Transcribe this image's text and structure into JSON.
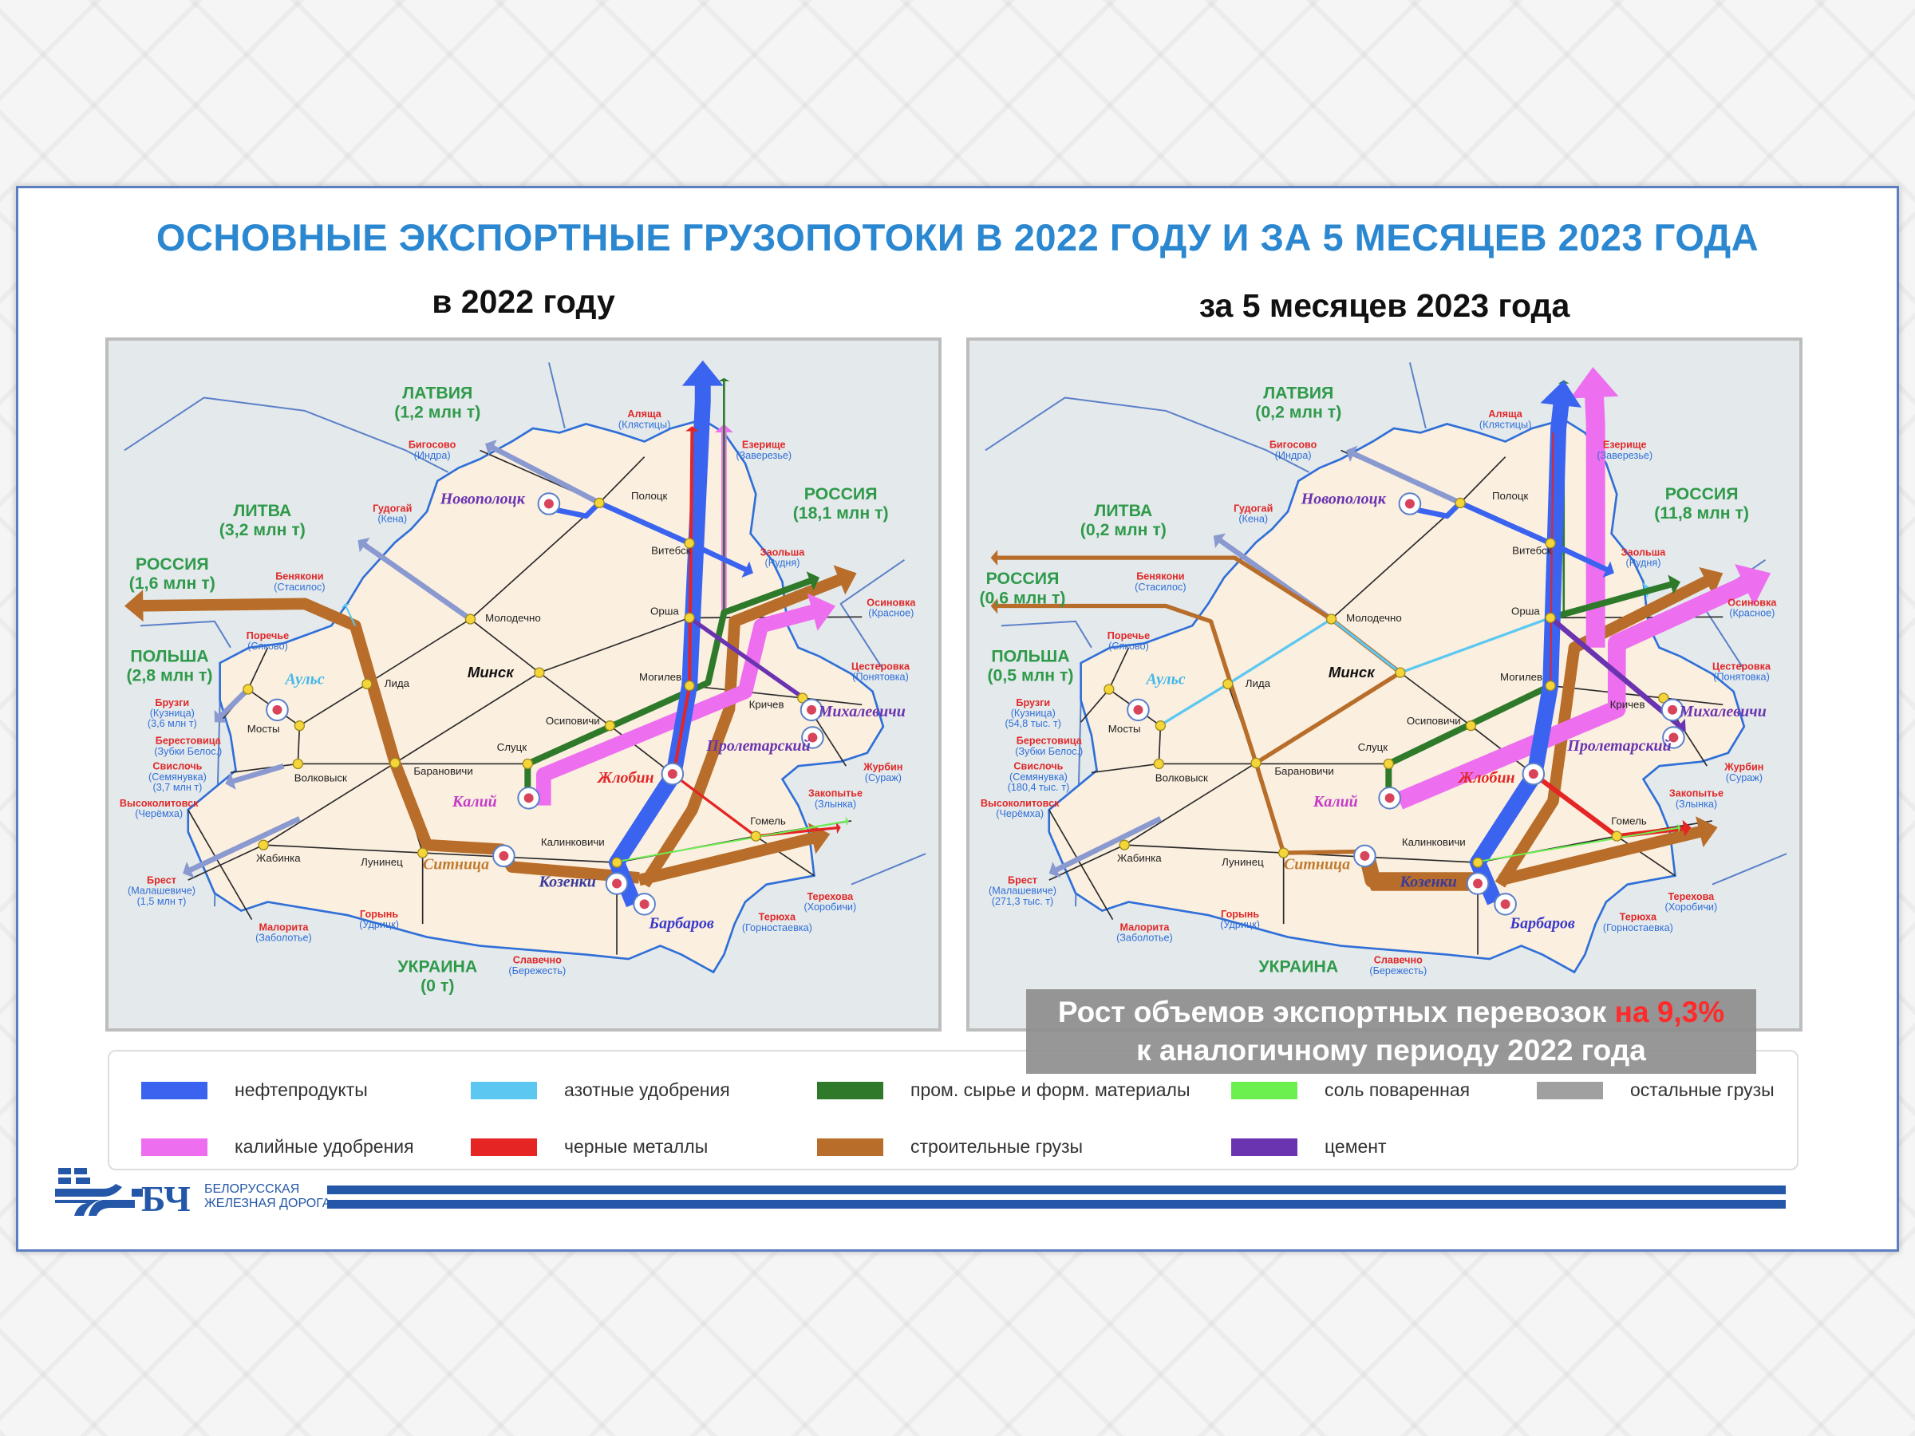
{
  "title": "ОСНОВНЫЕ  ЭКСПОРТНЫЕ  ГРУЗОПОТОКИ В 2022 ГОДУ И ЗА 5 МЕСЯЦЕВ 2023 ГОДА",
  "left": {
    "subtitle": "в 2022 году",
    "countries": {
      "latvia": {
        "name": "ЛАТВИЯ",
        "volume": "(1,2 млн т)"
      },
      "lithuania": {
        "name": "ЛИТВА",
        "volume": "(3,2 млн т)"
      },
      "russia_east": {
        "name": "РОССИЯ",
        "volume": "(18,1 млн т)"
      },
      "russia_west": {
        "name": "РОССИЯ",
        "volume": "(1,6 млн т)"
      },
      "poland": {
        "name": "ПОЛЬША",
        "volume": "(2,8 млн т)"
      },
      "ukraine": {
        "name": "УКРАИНА",
        "volume": "(0 т)"
      }
    },
    "crossing_volumes": {
      "bruzgi": "(3,6 млн т)",
      "svisloch": "(3,7 млн т)",
      "brest": "(1,5 млн т)"
    }
  },
  "right": {
    "subtitle": "за 5 месяцев 2023 года",
    "countries": {
      "latvia": {
        "name": "ЛАТВИЯ",
        "volume": "(0,2 млн т)"
      },
      "lithuania": {
        "name": "ЛИТВА",
        "volume": "(0,2 млн т)"
      },
      "russia_east": {
        "name": "РОССИЯ",
        "volume": "(11,8 млн т)"
      },
      "russia_west": {
        "name": "РОССИЯ",
        "volume": "(0,6 млн т)"
      },
      "poland": {
        "name": "ПОЛЬША",
        "volume": "(0,5 млн т)"
      },
      "ukraine": {
        "name": "УКРАИНА"
      }
    },
    "crossing_volumes": {
      "bruzgi": "(54,8 тыс. т)",
      "svisloch": "(180,4 тыс. т)",
      "brest": "(271,3 тыс. т)"
    }
  },
  "stations": [
    "Полоцк",
    "Витебск",
    "Молодечно",
    "Орша",
    "Минск",
    "Могилев",
    "Лида",
    "Осиповичи",
    "Кричев",
    "Мосты",
    "Слуцк",
    "Барановичи",
    "Волковыск",
    "Калинковичи",
    "Гомель",
    "Жабинка",
    "Лунинец"
  ],
  "crossings": [
    [
      "Аляща",
      "(Клястицы)"
    ],
    [
      "Бигосово",
      "(Индра)"
    ],
    [
      "Езерище",
      "(Заверезье)"
    ],
    [
      "Гудогай",
      "(Кена)"
    ],
    [
      "Бенякони",
      "(Стасилос)"
    ],
    [
      "Заольша",
      "(Рудня)"
    ],
    [
      "Осиновка",
      "(Красное)"
    ],
    [
      "Поречье",
      "(Сяково)"
    ],
    [
      "Цестеровка",
      "(Понятовка)"
    ],
    [
      "Брузги",
      "(Кузница)"
    ],
    [
      "Берестовица",
      "(Зубки Белос.)"
    ],
    [
      "Свислочь",
      "(Семянувка)"
    ],
    [
      "Высоколитовск",
      "(Черёмха)"
    ],
    [
      "Брест",
      "(Малашевиче)"
    ],
    [
      "Журбин",
      "(Сураж)"
    ],
    [
      "Закопытье",
      "(Злынка)"
    ],
    [
      "Терехова",
      "(Хоробичи)"
    ],
    [
      "Терюха",
      "(Горностаевка)"
    ],
    [
      "Славечно",
      "(Бережесть)"
    ],
    [
      "Горынь",
      "(Удрицк)"
    ],
    [
      "Малорита",
      "(Заболотье)"
    ]
  ],
  "enterprises": [
    "Новополоцк",
    "Аульс",
    "Калий",
    "Жлобин",
    "Пролетарский",
    "Михалевичи",
    "Ситница",
    "Козенки",
    "Барбаров"
  ],
  "banner": {
    "text1": "Рост объемов экспортных перевозок",
    "highlight": "на 9,3%",
    "text2": "к аналогичному периоду 2022 года"
  },
  "legend": [
    {
      "label": "нефтепродукты",
      "color": "#3a64f0"
    },
    {
      "label": "азотные удобрения",
      "color": "#5cc8f2"
    },
    {
      "label": "пром. сырье и форм. материалы",
      "color": "#2e7a2a"
    },
    {
      "label": "соль поваренная",
      "color": "#6cf050"
    },
    {
      "label": "остальные грузы",
      "color": "#a0a0a0"
    },
    {
      "label": "калийные удобрения",
      "color": "#ee6ef0"
    },
    {
      "label": "черные металлы",
      "color": "#e52424"
    },
    {
      "label": "строительные грузы",
      "color": "#b86e2a"
    },
    {
      "label": "цемент",
      "color": "#6a34b0"
    }
  ],
  "logo": {
    "mark": "БЧ",
    "line1": "БЕЛОРУССКАЯ",
    "line2": "ЖЕЛЕЗНАЯ ДОРОГА"
  }
}
